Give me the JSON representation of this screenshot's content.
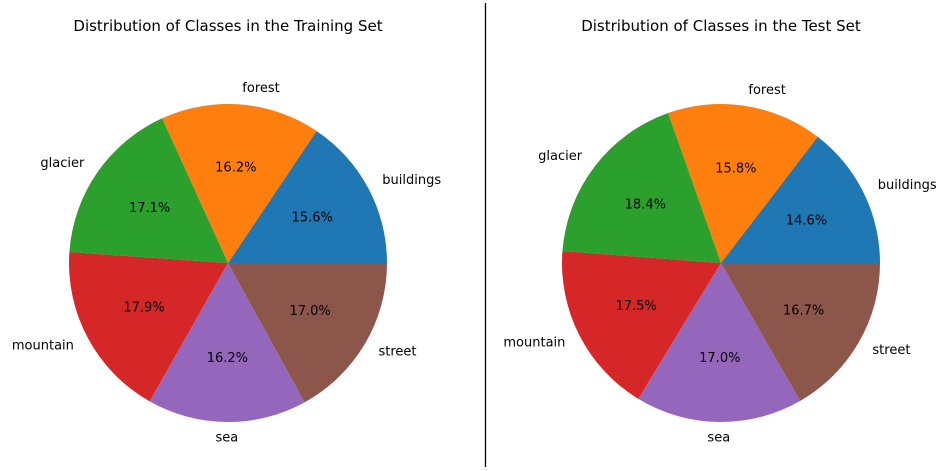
{
  "chart_data": [
    {
      "type": "pie",
      "title": "Distribution of Classes in the Training Set",
      "categories": [
        "buildings",
        "forest",
        "glacier",
        "mountain",
        "sea",
        "street"
      ],
      "values": [
        15.6,
        16.2,
        17.1,
        17.9,
        16.2,
        17.0
      ],
      "value_labels": [
        "15.6%",
        "16.2%",
        "17.1%",
        "17.9%",
        "16.2%",
        "17.0%"
      ],
      "start_angle_deg": 0,
      "direction": "counterclockwise",
      "colors": [
        "#1f77b4",
        "#ff7f0e",
        "#2ca02c",
        "#d62728",
        "#9467bd",
        "#8c564b"
      ]
    },
    {
      "type": "pie",
      "title": "Distribution of Classes in the Test Set",
      "categories": [
        "buildings",
        "forest",
        "glacier",
        "mountain",
        "sea",
        "street"
      ],
      "values": [
        14.6,
        15.8,
        18.4,
        17.5,
        17.0,
        16.7
      ],
      "value_labels": [
        "14.6%",
        "15.8%",
        "18.4%",
        "17.5%",
        "17.0%",
        "16.7%"
      ],
      "start_angle_deg": 0,
      "direction": "counterclockwise",
      "colors": [
        "#1f77b4",
        "#ff7f0e",
        "#2ca02c",
        "#d62728",
        "#9467bd",
        "#8c564b"
      ]
    }
  ]
}
